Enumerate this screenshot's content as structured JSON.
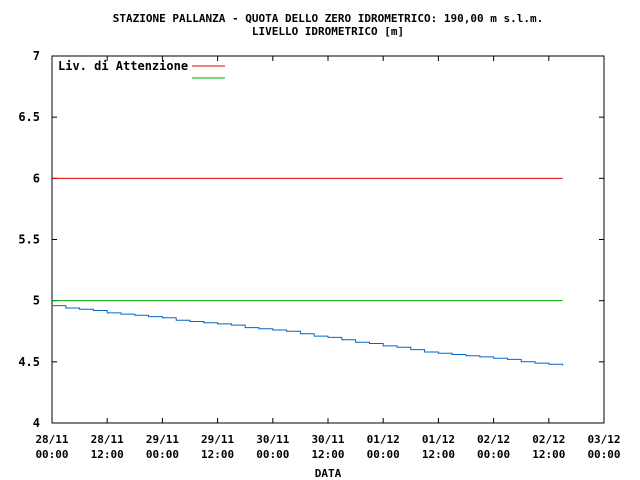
{
  "chart_data": {
    "type": "line",
    "title": "STAZIONE PALLANZA - QUOTA DELLO ZERO IDROMETRICO: 190,00 m s.l.m.",
    "subtitle": "LIVELLO IDROMETRICO [m]",
    "xlabel": "DATA",
    "ylabel": "",
    "ylim": [
      4,
      7
    ],
    "yticks": [
      "4",
      "4.5",
      "5",
      "5.5",
      "6",
      "6.5",
      "7"
    ],
    "xlim_hours": [
      0,
      120
    ],
    "xticks": [
      {
        "date": "28/11",
        "time": "00:00"
      },
      {
        "date": "28/11",
        "time": "12:00"
      },
      {
        "date": "29/11",
        "time": "00:00"
      },
      {
        "date": "29/11",
        "time": "12:00"
      },
      {
        "date": "30/11",
        "time": "00:00"
      },
      {
        "date": "30/11",
        "time": "12:00"
      },
      {
        "date": "01/12",
        "time": "00:00"
      },
      {
        "date": "01/12",
        "time": "12:00"
      },
      {
        "date": "02/12",
        "time": "00:00"
      },
      {
        "date": "02/12",
        "time": "12:00"
      },
      {
        "date": "03/12",
        "time": "00:00"
      }
    ],
    "grid": false,
    "legend_placement": "top-left",
    "legend": [
      {
        "name": "Liv. di Attenzione",
        "color": "#dd0000"
      },
      {
        "name": "",
        "color": "#00aa00"
      }
    ],
    "series": [
      {
        "name": "Liv. di Attenzione",
        "kind": "hline",
        "color": "#dd0000",
        "value": 6.0,
        "x_range": [
          0,
          111
        ]
      },
      {
        "name": "",
        "kind": "hline",
        "color": "#00aa00",
        "value": 5.0,
        "x_range": [
          0,
          111
        ]
      },
      {
        "name": "",
        "kind": "line",
        "color": "#0066cc",
        "x": [
          0,
          3,
          6,
          9,
          12,
          15,
          18,
          21,
          24,
          27,
          30,
          33,
          36,
          39,
          42,
          45,
          48,
          51,
          54,
          57,
          60,
          63,
          66,
          69,
          72,
          75,
          78,
          81,
          84,
          87,
          90,
          93,
          96,
          99,
          102,
          105,
          108,
          111
        ],
        "y": [
          4.96,
          4.94,
          4.93,
          4.92,
          4.9,
          4.89,
          4.88,
          4.87,
          4.86,
          4.84,
          4.83,
          4.82,
          4.81,
          4.8,
          4.78,
          4.77,
          4.76,
          4.75,
          4.73,
          4.71,
          4.7,
          4.68,
          4.66,
          4.65,
          4.63,
          4.62,
          4.6,
          4.58,
          4.57,
          4.56,
          4.55,
          4.54,
          4.53,
          4.52,
          4.5,
          4.49,
          4.48,
          4.47
        ]
      }
    ]
  }
}
